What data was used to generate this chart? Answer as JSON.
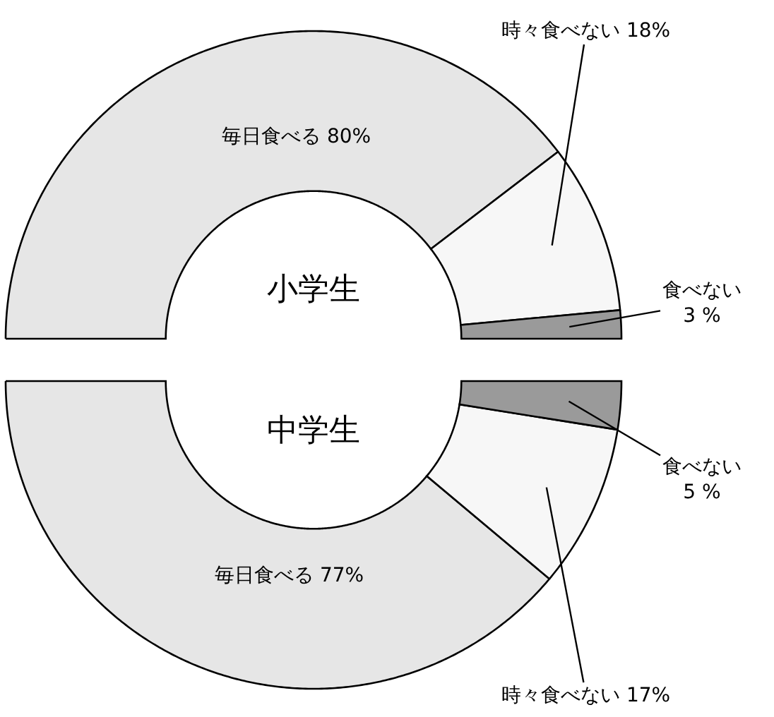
{
  "chart_data": [
    {
      "type": "donut",
      "title": "小学生",
      "categories": [
        "毎日食べる",
        "時々食べない",
        "食べない"
      ],
      "values": [
        80,
        18,
        3
      ],
      "value_labels": [
        "80%",
        "18%",
        "3 %"
      ],
      "colors": [
        "#e6e6e6",
        "#f7f7f7",
        "#9a9a9a"
      ],
      "legend": false
    },
    {
      "type": "donut",
      "title": "中学生",
      "categories": [
        "毎日食べる",
        "時々食べない",
        "食べない"
      ],
      "values": [
        77,
        17,
        5
      ],
      "value_labels": [
        "77%",
        "17%",
        "5 %"
      ],
      "colors": [
        "#e6e6e6",
        "#f7f7f7",
        "#9a9a9a"
      ],
      "legend": false
    }
  ]
}
